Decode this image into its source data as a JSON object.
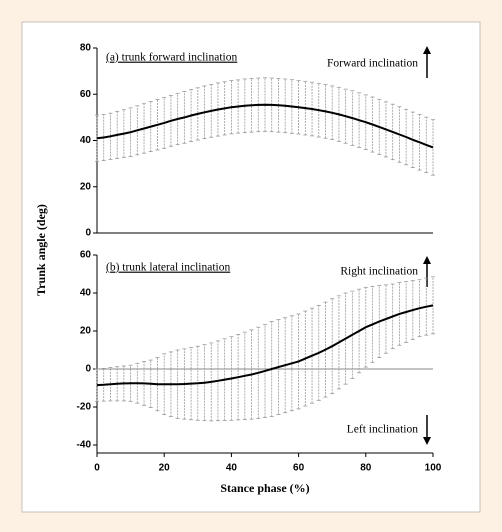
{
  "y_axis_label": "Trunk angle (deg)",
  "chart_data": [
    {
      "type": "line",
      "annotations": [
        "(a) trunk forward inclination",
        "Forward inclination"
      ],
      "x": [
        0,
        2,
        4,
        6,
        8,
        10,
        12,
        14,
        16,
        18,
        20,
        22,
        24,
        26,
        28,
        30,
        32,
        34,
        36,
        38,
        40,
        42,
        44,
        46,
        48,
        50,
        52,
        54,
        56,
        58,
        60,
        62,
        64,
        66,
        68,
        70,
        72,
        74,
        76,
        78,
        80,
        82,
        84,
        86,
        88,
        90,
        92,
        94,
        96,
        98,
        100
      ],
      "values": [
        41.0,
        41.3,
        41.8,
        42.4,
        43.0,
        43.6,
        44.4,
        45.2,
        46.0,
        46.8,
        47.6,
        48.5,
        49.3,
        50.0,
        50.8,
        51.5,
        52.2,
        52.8,
        53.4,
        53.9,
        54.4,
        54.7,
        55.0,
        55.2,
        55.4,
        55.5,
        55.4,
        55.2,
        55.0,
        54.7,
        54.4,
        54.0,
        53.6,
        53.1,
        52.6,
        52.0,
        51.3,
        50.5,
        49.7,
        48.8,
        47.9,
        46.9,
        45.9,
        44.8,
        43.7,
        42.6,
        41.5,
        40.3,
        39.2,
        38.1,
        37.0
      ],
      "errors": [
        10,
        10,
        10,
        10.2,
        10.3,
        10.5,
        10.6,
        10.7,
        10.8,
        10.9,
        11,
        11,
        11.1,
        11.2,
        11.3,
        11.3,
        11.4,
        11.4,
        11.5,
        11.5,
        11.5,
        11.5,
        11.6,
        11.6,
        11.6,
        11.6,
        11.6,
        11.6,
        11.6,
        11.6,
        11.6,
        11.6,
        11.6,
        11.6,
        11.6,
        11.6,
        11.7,
        11.7,
        11.8,
        11.8,
        11.8,
        11.9,
        11.9,
        11.9,
        12,
        12,
        12,
        12,
        12,
        12,
        12
      ],
      "color": "#000000",
      "error_color": "#999999",
      "xlim": [
        0,
        100
      ],
      "ylim": [
        0,
        80
      ],
      "yticks": [
        0,
        20,
        40,
        60,
        80
      ]
    },
    {
      "type": "line",
      "annotations": [
        "(b) trunk lateral inclination",
        "Right inclination",
        "Left inclination"
      ],
      "xlabel": "Stance phase (%)",
      "x": [
        0,
        2,
        4,
        6,
        8,
        10,
        12,
        14,
        16,
        18,
        20,
        22,
        24,
        26,
        28,
        30,
        32,
        34,
        36,
        38,
        40,
        42,
        44,
        46,
        48,
        50,
        52,
        54,
        56,
        58,
        60,
        62,
        64,
        66,
        68,
        70,
        72,
        74,
        76,
        78,
        80,
        82,
        84,
        86,
        88,
        90,
        92,
        94,
        96,
        98,
        100
      ],
      "values": [
        -8.5,
        -8.3,
        -8.0,
        -7.8,
        -7.6,
        -7.5,
        -7.5,
        -7.6,
        -7.8,
        -8.0,
        -8.0,
        -8.0,
        -8.0,
        -7.9,
        -7.7,
        -7.5,
        -7.2,
        -6.8,
        -6.2,
        -5.6,
        -5.0,
        -4.3,
        -3.6,
        -2.9,
        -2.0,
        -1.0,
        0.0,
        1.0,
        2.0,
        3.0,
        4.0,
        5.5,
        7.0,
        8.5,
        10.2,
        12.0,
        14.0,
        16.0,
        18.0,
        20.0,
        22.0,
        23.5,
        25.0,
        26.3,
        27.7,
        29.0,
        30.0,
        31.0,
        32.0,
        32.8,
        33.5
      ],
      "errors": [
        8.5,
        8.6,
        8.8,
        9.0,
        9.2,
        9.5,
        10.5,
        11.5,
        12.5,
        14.0,
        16.0,
        17.0,
        18.0,
        18.5,
        19.0,
        19.5,
        20.0,
        20.5,
        21.0,
        21.5,
        22.0,
        22.5,
        23.0,
        23.5,
        24.0,
        24.5,
        25.0,
        25.0,
        25.0,
        25.0,
        25.0,
        25.0,
        25.0,
        25.0,
        25.0,
        25.0,
        24.5,
        24.0,
        23.0,
        22.0,
        21.0,
        20.0,
        19.0,
        18.0,
        17.0,
        16.5,
        16.0,
        15.5,
        15.0,
        15.0,
        15.0
      ],
      "color": "#000000",
      "error_color": "#999999",
      "xlim": [
        0,
        100
      ],
      "ylim": [
        -40,
        60
      ],
      "yticks": [
        -40,
        -20,
        0,
        20,
        40,
        60
      ],
      "xticks": [
        0,
        20,
        40,
        60,
        80,
        100
      ]
    }
  ]
}
